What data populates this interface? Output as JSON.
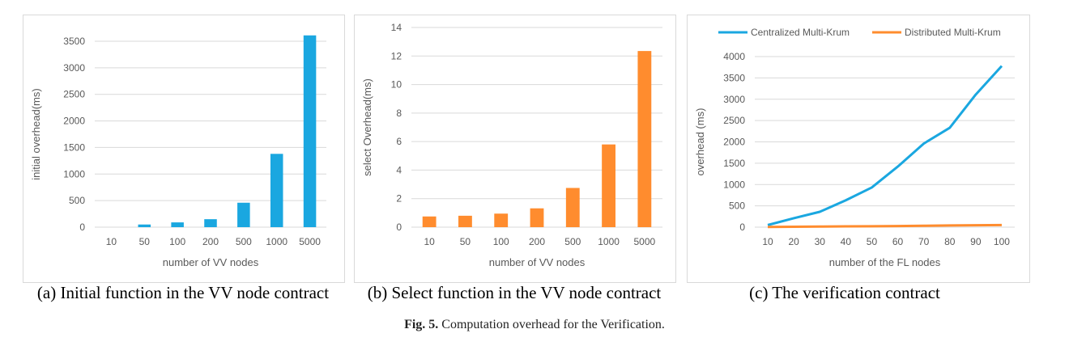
{
  "chart_data": [
    {
      "type": "bar",
      "categories": [
        "10",
        "50",
        "100",
        "200",
        "500",
        "1000",
        "5000"
      ],
      "series": [
        {
          "values": [
            0,
            50,
            90,
            150,
            460,
            1380,
            3610
          ],
          "color": "#1aa7e0"
        }
      ],
      "xlabel": "number of VV nodes",
      "ylabel": "initial overhead(ms)",
      "yticks": [
        "0",
        "500",
        "1000",
        "1500",
        "2000",
        "2500",
        "3000",
        "3500"
      ],
      "ylim": [
        0,
        3500
      ],
      "grid": true
    },
    {
      "type": "bar",
      "categories": [
        "10",
        "50",
        "100",
        "200",
        "500",
        "1000",
        "5000"
      ],
      "series": [
        {
          "values": [
            0.75,
            0.8,
            0.95,
            1.32,
            2.75,
            5.8,
            12.35
          ],
          "color": "#ff8c2e"
        }
      ],
      "xlabel": "number of VV nodes",
      "ylabel": "select Overhead(ms)",
      "yticks": [
        "0",
        "2",
        "4",
        "6",
        "8",
        "10",
        "12",
        "14"
      ],
      "ylim": [
        0,
        14
      ],
      "grid": true
    },
    {
      "type": "line",
      "x": [
        "10",
        "20",
        "30",
        "40",
        "50",
        "60",
        "70",
        "80",
        "90",
        "100"
      ],
      "series": [
        {
          "name": "Centralized Multi-Krum",
          "values": [
            50,
            210,
            360,
            630,
            930,
            1420,
            1960,
            2330,
            3110,
            3780
          ],
          "color": "#1aa7e0"
        },
        {
          "name": "Distributed Multi-Krum",
          "values": [
            5,
            10,
            14,
            18,
            22,
            26,
            32,
            40,
            45,
            50
          ],
          "color": "#ff8c2e"
        }
      ],
      "xlabel": "number of the FL nodes",
      "ylabel": "overhead (ms)",
      "yticks": [
        "0",
        "500",
        "1000",
        "1500",
        "2000",
        "2500",
        "3000",
        "3500",
        "4000"
      ],
      "ylim": [
        0,
        4000
      ],
      "legend": "top",
      "grid": true
    }
  ],
  "captions": {
    "a": "(a)  Initial function in the VV node contract",
    "b": "(b)  Select function in the VV node contract",
    "c": "(c)  The verification contract"
  },
  "figure_caption": {
    "label": "Fig. 5.",
    "text": "Computation overhead for the Verification."
  }
}
